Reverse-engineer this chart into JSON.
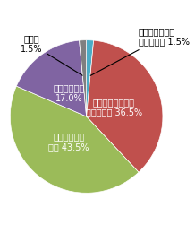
{
  "slices": [
    {
      "label": "内容まで詳しく\n知っている 1.5%",
      "value": 1.5,
      "color": "#4bacc6"
    },
    {
      "label": "おおよその内容は\n知っている 36.5%",
      "value": 36.5,
      "color": "#c0504d"
    },
    {
      "label": "名前は知って\nいる 43.5%",
      "value": 43.5,
      "color": "#9bbb59"
    },
    {
      "label": "知らなかった\n17.0%",
      "value": 17.0,
      "color": "#8064a2"
    },
    {
      "label": "無回答\n1.5%",
      "value": 1.5,
      "color": "#7f7f7f"
    }
  ],
  "startangle": 90,
  "background_color": "#ffffff",
  "label_fontsize": 7.0,
  "outside_label_fontsize": 7.0,
  "inside_label_color": "#ffffff"
}
